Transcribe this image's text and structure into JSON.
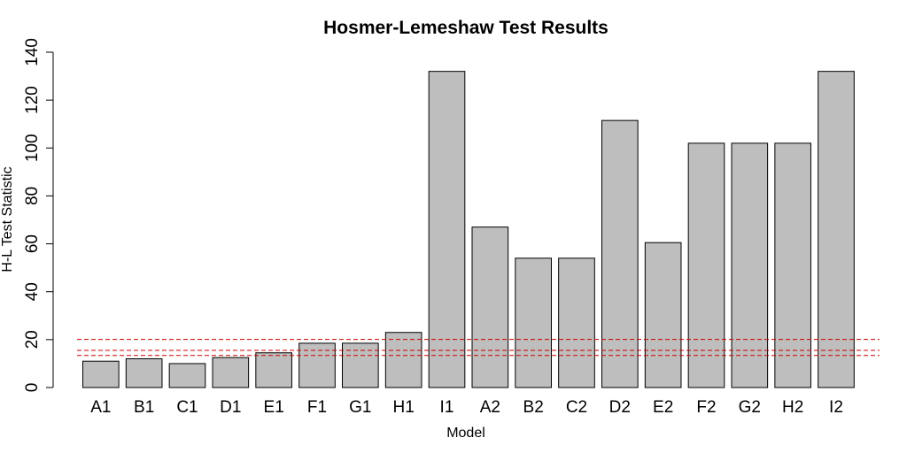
{
  "chart_data": {
    "type": "bar",
    "title": "Hosmer-Lemeshaw Test Results",
    "xlabel": "Model",
    "ylabel": "H-L Test Statistic",
    "categories": [
      "A1",
      "B1",
      "C1",
      "D1",
      "E1",
      "F1",
      "G1",
      "H1",
      "I1",
      "A2",
      "B2",
      "C2",
      "D2",
      "E2",
      "F2",
      "G2",
      "H2",
      "I2"
    ],
    "values": [
      11,
      12,
      10,
      12.5,
      14.5,
      18.5,
      18.5,
      23,
      132,
      67,
      54,
      54,
      111.5,
      60.5,
      102,
      102,
      102,
      132
    ],
    "ylim": [
      0,
      140
    ],
    "yticks": [
      0,
      20,
      40,
      60,
      80,
      100,
      120,
      140
    ],
    "reference_lines": [
      13.4,
      15.5,
      20.1
    ],
    "colors": {
      "bar_fill": "#bebebe",
      "bar_stroke": "#000000",
      "reference_line": "#cc0000"
    },
    "grid": false,
    "legend": "none"
  }
}
